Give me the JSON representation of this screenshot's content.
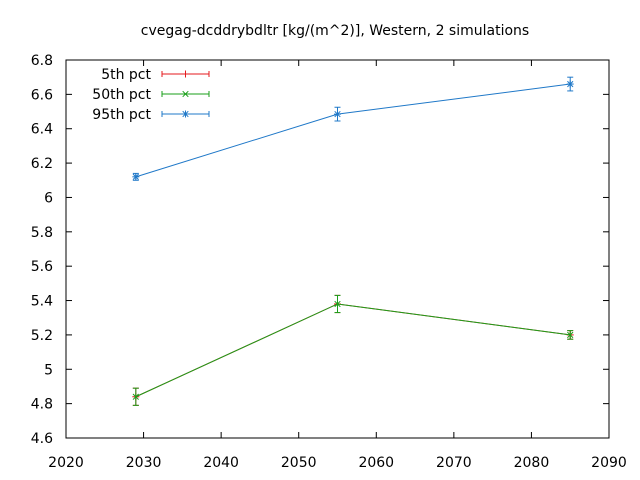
{
  "chart_data": {
    "type": "line",
    "title": "cvegag-dcddrybdltr [kg/(m^2)], Western, 2 simulations",
    "xlabel": "",
    "ylabel": "",
    "xlim": [
      2020,
      2090
    ],
    "ylim": [
      4.6,
      6.8
    ],
    "x_ticks": [
      "2020",
      "2030",
      "2040",
      "2050",
      "2060",
      "2070",
      "2080",
      "2090"
    ],
    "y_ticks": [
      "4.6",
      "4.8",
      "5",
      "5.2",
      "5.4",
      "5.6",
      "5.8",
      "6",
      "6.2",
      "6.4",
      "6.6",
      "6.8"
    ],
    "grid": false,
    "legend_position": "top-left",
    "x": [
      2029,
      2055,
      2085
    ],
    "series": [
      {
        "name": "5th pct",
        "color": "#e41a1c",
        "marker": "plus",
        "values": [
          4.84,
          5.38,
          5.2
        ],
        "err": [
          0.05,
          0.05,
          0.025
        ]
      },
      {
        "name": "50th pct",
        "color": "#1a9f1a",
        "marker": "cross",
        "values": [
          4.84,
          5.38,
          5.2
        ],
        "err": [
          0.05,
          0.05,
          0.025
        ]
      },
      {
        "name": "95th pct",
        "color": "#1f78c8",
        "marker": "star",
        "values": [
          6.12,
          6.485,
          6.66
        ],
        "err": [
          0.02,
          0.04,
          0.04
        ]
      }
    ]
  }
}
